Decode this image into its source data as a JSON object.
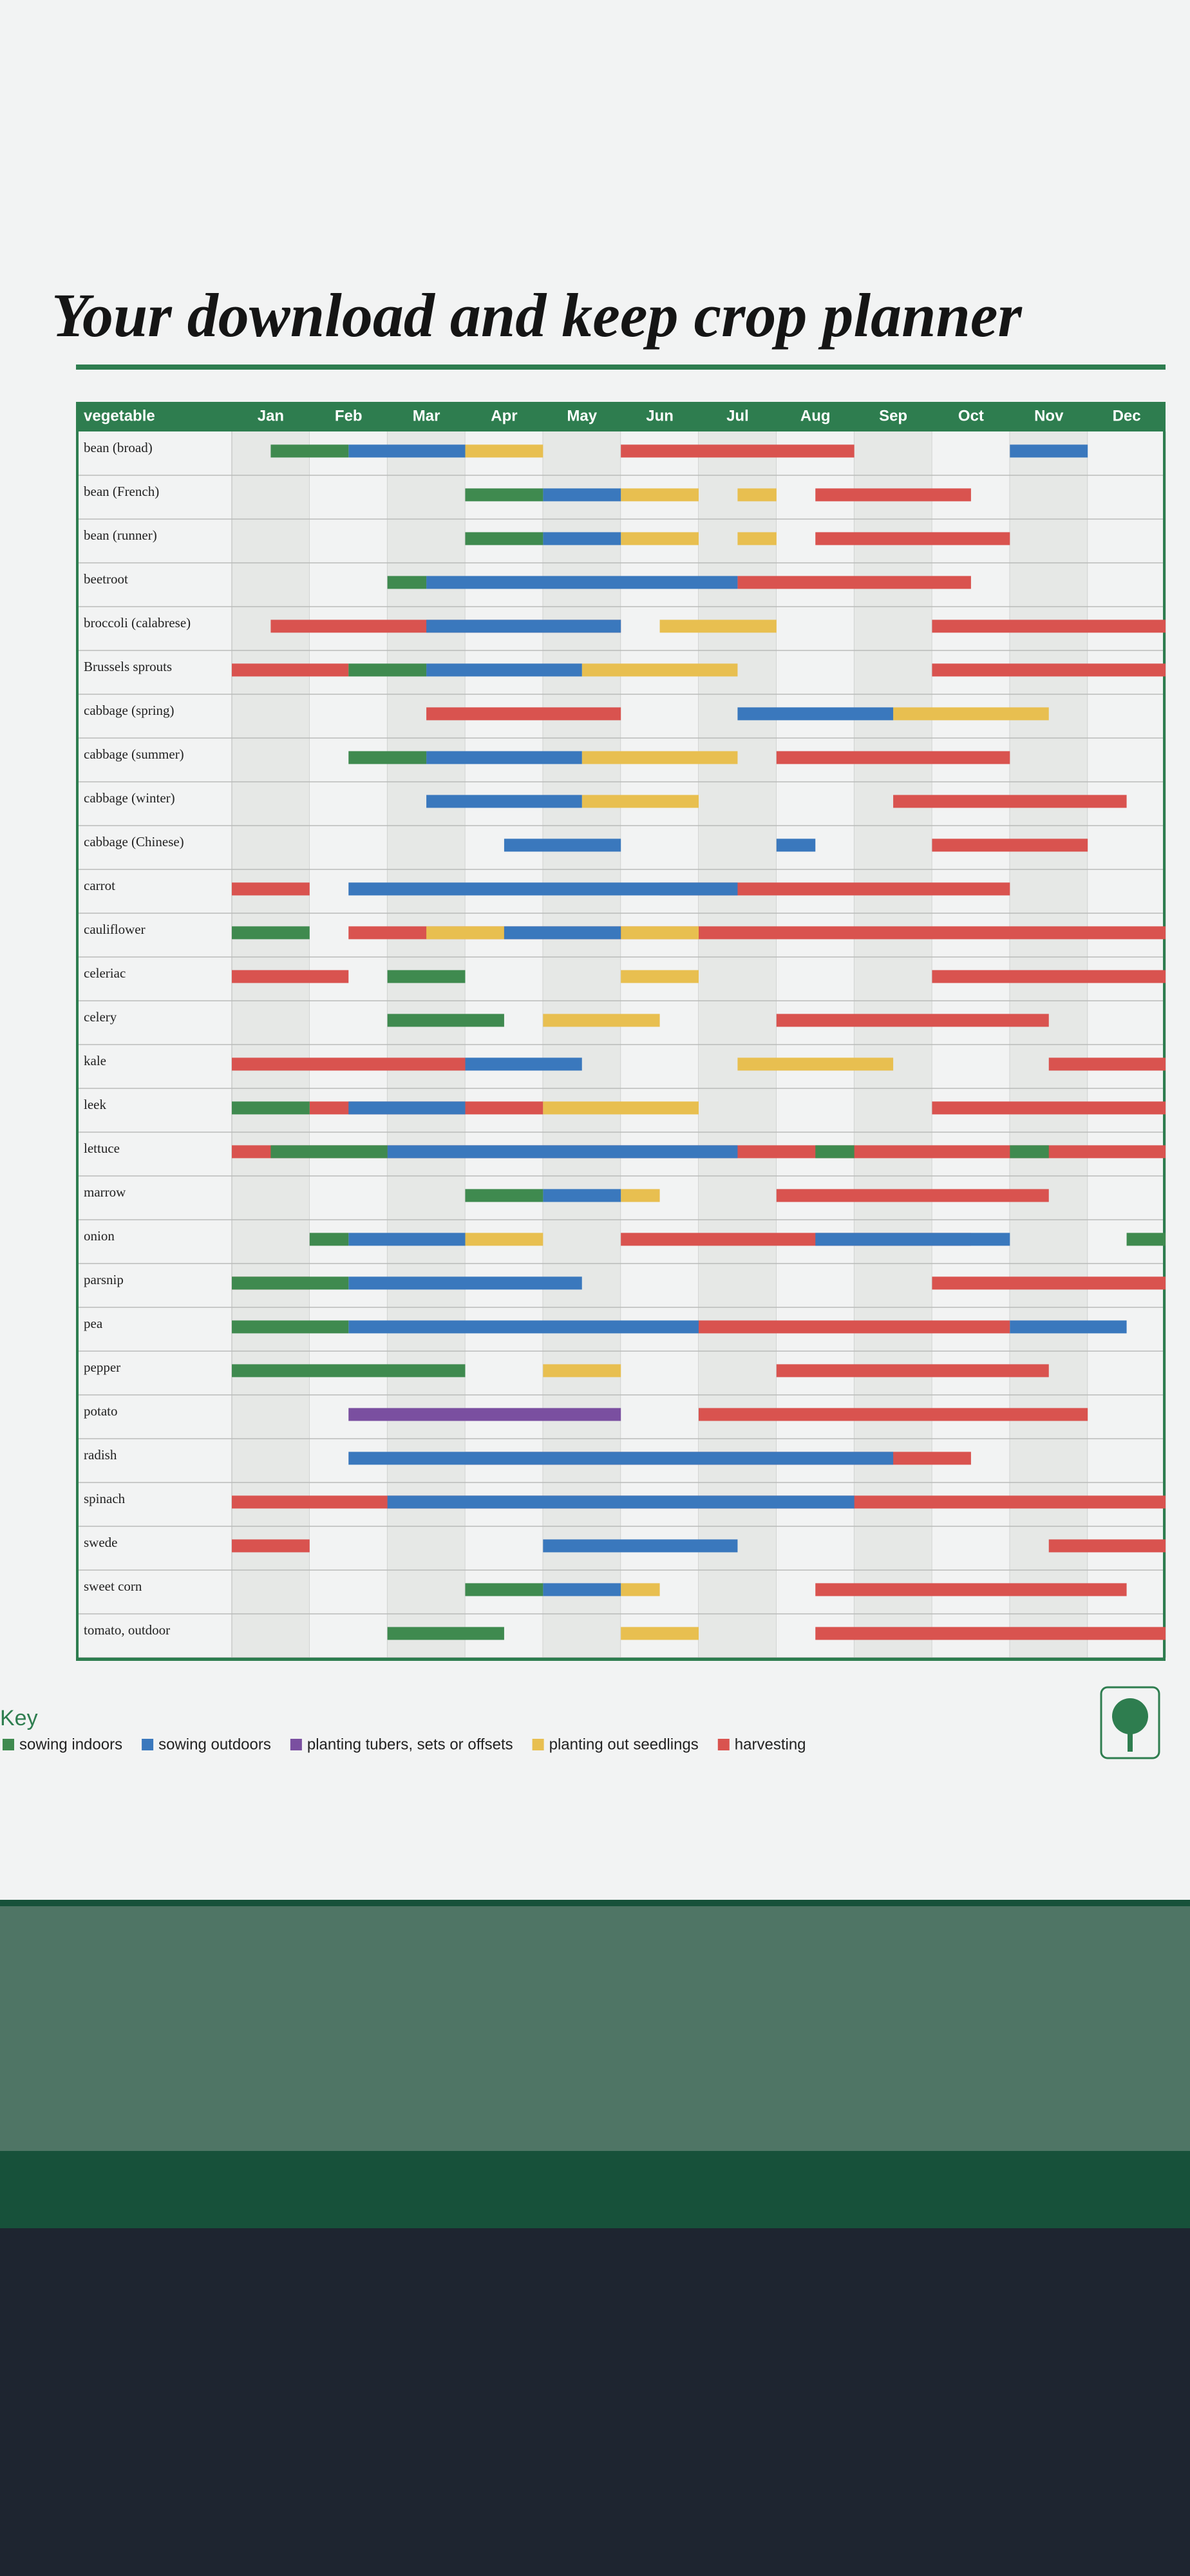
{
  "chart_data": {
    "type": "gantt",
    "title": "Your download and keep crop planner",
    "category_header": "vegetable",
    "legend_title": "Key",
    "xlim": [
      0,
      12
    ],
    "xticks": [
      {
        "value": 0.5,
        "label": "Jan"
      },
      {
        "value": 1.5,
        "label": "Feb"
      },
      {
        "value": 2.5,
        "label": "Mar"
      },
      {
        "value": 3.5,
        "label": "Apr"
      },
      {
        "value": 4.5,
        "label": "May"
      },
      {
        "value": 5.5,
        "label": "Jun"
      },
      {
        "value": 6.5,
        "label": "Jul"
      },
      {
        "value": 7.5,
        "label": "Aug"
      },
      {
        "value": 8.5,
        "label": "Sep"
      },
      {
        "value": 9.5,
        "label": "Oct"
      },
      {
        "value": 10.5,
        "label": "Nov"
      },
      {
        "value": 11.5,
        "label": "Dec"
      }
    ],
    "categories": [
      "bean (broad)",
      "bean (French)",
      "bean (runner)",
      "beetroot",
      "broccoli (calabrese)",
      "Brussels sprouts",
      "cabbage (spring)",
      "cabbage (summer)",
      "cabbage (winter)",
      "cabbage (Chinese)",
      "carrot",
      "cauliflower",
      "celeriac",
      "celery",
      "kale",
      "leek",
      "lettuce",
      "marrow",
      "onion",
      "parsnip",
      "pea",
      "pepper",
      "potato",
      "radish",
      "spinach",
      "swede",
      "sweet corn",
      "tomato, outdoor"
    ],
    "series": [
      {
        "name": "sowing indoors",
        "color": "#3f8a4f",
        "values": [
          [
            [
              0.5,
              1.5
            ]
          ],
          [
            [
              3,
              4
            ]
          ],
          [
            [
              3,
              4
            ]
          ],
          [
            [
              2,
              2.5
            ]
          ],
          null,
          [
            [
              1.5,
              2.5
            ]
          ],
          null,
          [
            [
              1.5,
              2.5
            ]
          ],
          null,
          null,
          null,
          [
            [
              0,
              1
            ]
          ],
          [
            [
              2,
              3
            ]
          ],
          [
            [
              2,
              3.5
            ]
          ],
          null,
          [
            [
              0,
              1
            ]
          ],
          [
            [
              0.5,
              2
            ],
            [
              7.5,
              8
            ],
            [
              10,
              10.5
            ]
          ],
          [
            [
              3,
              4
            ]
          ],
          [
            [
              1,
              1.5
            ],
            [
              11.5,
              12
            ]
          ],
          [
            [
              0,
              1.5
            ]
          ],
          [
            [
              0,
              1.5
            ]
          ],
          [
            [
              0,
              3
            ]
          ],
          null,
          null,
          null,
          null,
          [
            [
              3,
              4
            ]
          ],
          [
            [
              2,
              3.5
            ]
          ]
        ]
      },
      {
        "name": "sowing outdoors",
        "color": "#3a78bd",
        "values": [
          [
            [
              1.5,
              3
            ],
            [
              10,
              11
            ]
          ],
          [
            [
              4,
              5
            ]
          ],
          [
            [
              4,
              5
            ]
          ],
          [
            [
              2.5,
              6.5
            ]
          ],
          [
            [
              2.5,
              5
            ]
          ],
          [
            [
              2.5,
              4.5
            ]
          ],
          [
            [
              6.5,
              8.5
            ]
          ],
          [
            [
              2.5,
              4.5
            ]
          ],
          [
            [
              2.5,
              4.5
            ]
          ],
          [
            [
              3.5,
              5
            ],
            [
              7,
              7.5
            ]
          ],
          [
            [
              1.5,
              6.5
            ]
          ],
          [
            [
              3.5,
              5
            ]
          ],
          null,
          null,
          [
            [
              3,
              4.5
            ]
          ],
          [
            [
              1.5,
              3
            ]
          ],
          [
            [
              2,
              6.5
            ]
          ],
          [
            [
              4,
              5
            ]
          ],
          [
            [
              1.5,
              3
            ],
            [
              7.5,
              10
            ]
          ],
          [
            [
              1.5,
              4.5
            ]
          ],
          [
            [
              1.5,
              6
            ],
            [
              10,
              11.5
            ]
          ],
          null,
          null,
          [
            [
              1.5,
              8.5
            ]
          ],
          [
            [
              2,
              8
            ]
          ],
          [
            [
              4,
              6.5
            ]
          ],
          [
            [
              4,
              5
            ]
          ],
          null
        ]
      },
      {
        "name": "planting tubers, sets or offsets",
        "color": "#7a4fa0",
        "values": [
          null,
          null,
          null,
          null,
          null,
          null,
          null,
          null,
          null,
          null,
          null,
          null,
          null,
          null,
          null,
          null,
          null,
          null,
          null,
          null,
          null,
          null,
          [
            [
              1.5,
              5
            ]
          ],
          null,
          null,
          null,
          null,
          null
        ]
      },
      {
        "name": "planting out seedlings",
        "color": "#e8bf50",
        "values": [
          [
            [
              3,
              4
            ]
          ],
          [
            [
              5,
              6
            ],
            [
              6.5,
              7
            ]
          ],
          [
            [
              5,
              6
            ],
            [
              6.5,
              7
            ]
          ],
          null,
          [
            [
              5.5,
              7
            ]
          ],
          [
            [
              4.5,
              6.5
            ]
          ],
          [
            [
              8.5,
              10.5
            ]
          ],
          [
            [
              4.5,
              6.5
            ]
          ],
          [
            [
              4.5,
              6
            ]
          ],
          null,
          null,
          [
            [
              2.5,
              3.5
            ],
            [
              5,
              6
            ]
          ],
          [
            [
              5,
              6
            ]
          ],
          [
            [
              4,
              5.5
            ]
          ],
          [
            [
              6.5,
              8.5
            ]
          ],
          [
            [
              4,
              6
            ]
          ],
          null,
          [
            [
              5,
              5.5
            ]
          ],
          [
            [
              3,
              4
            ]
          ],
          null,
          null,
          [
            [
              4,
              5
            ]
          ],
          null,
          null,
          null,
          null,
          [
            [
              5,
              5.5
            ]
          ],
          [
            [
              5,
              6
            ]
          ]
        ]
      },
      {
        "name": "harvesting",
        "color": "#d9534f",
        "values": [
          [
            [
              5,
              8
            ]
          ],
          [
            [
              7.5,
              9.5
            ]
          ],
          [
            [
              7.5,
              10
            ]
          ],
          [
            [
              6.5,
              9.5
            ]
          ],
          [
            [
              0.5,
              5
            ],
            [
              9,
              12
            ]
          ],
          [
            [
              0,
              1.5
            ],
            [
              9,
              12
            ]
          ],
          [
            [
              2.5,
              5
            ]
          ],
          [
            [
              7,
              10
            ]
          ],
          [
            [
              8.5,
              11.5
            ]
          ],
          [
            [
              9,
              11
            ]
          ],
          [
            [
              0,
              1
            ],
            [
              5.5,
              10
            ]
          ],
          [
            [
              1.5,
              12
            ]
          ],
          [
            [
              0,
              1.5
            ],
            [
              9,
              12
            ]
          ],
          [
            [
              7,
              10.5
            ]
          ],
          [
            [
              0,
              3
            ],
            [
              10.5,
              12
            ]
          ],
          [
            [
              1,
              4
            ],
            [
              9,
              12
            ]
          ],
          [
            [
              0,
              12
            ]
          ],
          [
            [
              7,
              10.5
            ]
          ],
          [
            [
              5,
              9.5
            ]
          ],
          [
            [
              0,
              1
            ],
            [
              9,
              12
            ]
          ],
          [
            [
              6,
              10
            ]
          ],
          [
            [
              7,
              10.5
            ]
          ],
          [
            [
              6,
              11
            ]
          ],
          [
            [
              3,
              9.5
            ]
          ],
          [
            [
              0,
              12
            ]
          ],
          [
            [
              0,
              1
            ],
            [
              10.5,
              12
            ]
          ],
          [
            [
              7.5,
              11.5
            ]
          ],
          [
            [
              7.5,
              12
            ]
          ]
        ]
      }
    ]
  }
}
